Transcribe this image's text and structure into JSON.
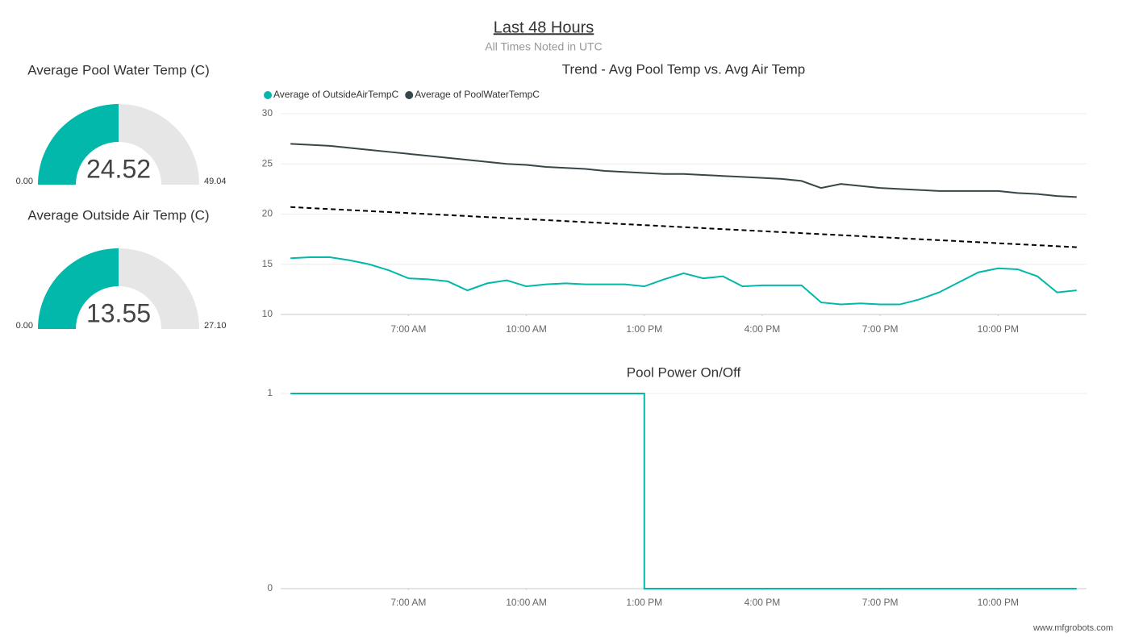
{
  "header": {
    "title": "Last 48 Hours",
    "subtitle": "All Times Noted in UTC"
  },
  "watermark": "www.mfgrobots.com",
  "chart_data": [
    {
      "type": "gauge",
      "title": "Average Pool Water Temp (C)",
      "value": 24.52,
      "min": {
        "value": 0,
        "label": "0.00"
      },
      "max": 49.04,
      "color": "#01b8aa",
      "track_color": "#e6e6e6"
    },
    {
      "type": "gauge",
      "title": "Average Outside Air Temp (C)",
      "value": 13.55,
      "min": {
        "value": 0,
        "label": "0.00"
      },
      "max": {
        "value": 27.1,
        "label": "27.10"
      },
      "color": "#01b8aa",
      "track_color": "#e6e6e6"
    },
    {
      "type": "line",
      "title": "Trend - Avg Pool Temp vs. Avg Air Temp",
      "x": [
        4,
        4.5,
        5,
        5.5,
        6,
        6.5,
        7,
        7.5,
        8,
        8.5,
        9,
        9.5,
        10,
        10.5,
        11,
        11.5,
        12,
        12.5,
        13,
        13.5,
        14,
        14.5,
        15,
        15.5,
        16,
        16.5,
        17,
        17.5,
        18,
        18.5,
        19,
        19.5,
        20,
        20.5,
        21,
        21.5,
        22,
        22.5,
        23,
        23.5,
        24
      ],
      "series": [
        {
          "name": "Average of OutsideAirTempC",
          "color": "#01b8aa",
          "values": [
            15.6,
            15.7,
            15.7,
            15.4,
            15.0,
            14.4,
            13.6,
            13.5,
            13.3,
            12.4,
            13.1,
            13.4,
            12.8,
            13.0,
            13.1,
            13.0,
            13.0,
            13.0,
            12.8,
            13.5,
            14.1,
            13.6,
            13.8,
            12.8,
            12.9,
            12.9,
            12.9,
            11.2,
            11.0,
            11.1,
            11.0,
            11.0,
            11.5,
            12.2,
            13.2,
            14.2,
            14.6,
            14.5,
            13.8,
            12.2,
            12.4
          ]
        },
        {
          "name": "Average of PoolWaterTempC",
          "color": "#374649",
          "values": [
            27.0,
            26.9,
            26.8,
            26.6,
            26.4,
            26.2,
            26.0,
            25.8,
            25.6,
            25.4,
            25.2,
            25.0,
            24.9,
            24.7,
            24.6,
            24.5,
            24.3,
            24.2,
            24.1,
            24.0,
            24.0,
            23.9,
            23.8,
            23.7,
            23.6,
            23.5,
            23.3,
            22.6,
            23.0,
            22.8,
            22.6,
            22.5,
            22.4,
            22.3,
            22.3,
            22.3,
            22.3,
            22.1,
            22.0,
            21.8,
            21.7
          ]
        }
      ],
      "trendline": {
        "x": [
          4,
          24
        ],
        "values": [
          20.7,
          16.7
        ],
        "color": "#000000"
      },
      "xlim": [
        3.75,
        24.25
      ],
      "xticks": [
        {
          "value": 7,
          "label": "7:00 AM"
        },
        {
          "value": 10,
          "label": "10:00 AM"
        },
        {
          "value": 13,
          "label": "1:00 PM"
        },
        {
          "value": 16,
          "label": "4:00 PM"
        },
        {
          "value": 19,
          "label": "7:00 PM"
        },
        {
          "value": 22,
          "label": "10:00 PM"
        }
      ],
      "ylim": [
        10,
        30
      ],
      "yticks": [
        10,
        15,
        20,
        25,
        30
      ],
      "grid": true,
      "legend": "top-left"
    },
    {
      "type": "line",
      "title": "Pool Power On/Off",
      "x": [
        4,
        13,
        13,
        24
      ],
      "series": [
        {
          "color": "#01b8aa",
          "values": [
            1,
            1,
            0,
            0
          ]
        }
      ],
      "xlim": [
        3.75,
        24.25
      ],
      "xticks": [
        {
          "value": 7,
          "label": "7:00 AM"
        },
        {
          "value": 10,
          "label": "10:00 AM"
        },
        {
          "value": 13,
          "label": "1:00 PM"
        },
        {
          "value": 16,
          "label": "4:00 PM"
        },
        {
          "value": 19,
          "label": "7:00 PM"
        },
        {
          "value": 22,
          "label": "10:00 PM"
        }
      ],
      "ylim": [
        0,
        1
      ],
      "yticks": [
        0,
        1
      ],
      "grid": true
    }
  ]
}
